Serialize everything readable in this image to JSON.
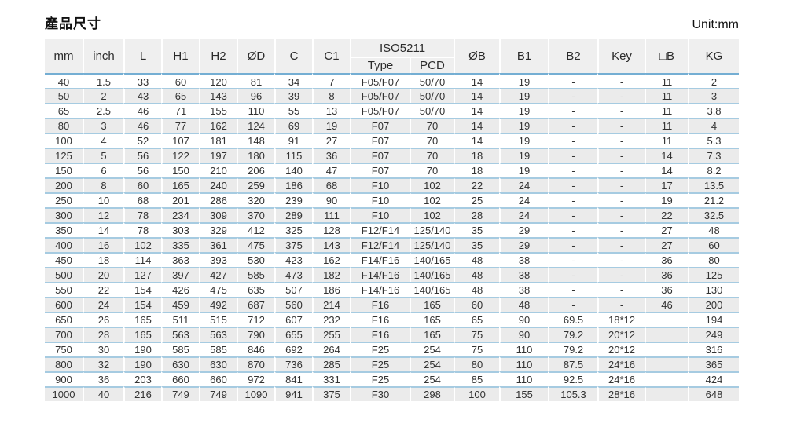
{
  "page": {
    "title": "產品尺寸",
    "unit_label": "Unit:mm"
  },
  "colors": {
    "header_bg": "#efefef",
    "row_alt_bg": "#ebebeb",
    "row_separator_blue": "#a6cbe1",
    "header_rule_blue": "#74aed3",
    "text": "#333333"
  },
  "table": {
    "header": {
      "left_columns": [
        "mm",
        "inch",
        "L",
        "H1",
        "H2",
        "ØD",
        "C",
        "C1"
      ],
      "group": {
        "label": "ISO5211",
        "sub_columns": [
          "Type",
          "PCD"
        ]
      },
      "right_columns": [
        "ØB",
        "B1",
        "B2",
        "Key",
        "□B",
        "KG"
      ]
    },
    "rows": [
      [
        "40",
        "1.5",
        "33",
        "60",
        "120",
        "81",
        "34",
        "7",
        "F05/F07",
        "50/70",
        "14",
        "19",
        "-",
        "-",
        "11",
        "2"
      ],
      [
        "50",
        "2",
        "43",
        "65",
        "143",
        "96",
        "39",
        "8",
        "F05/F07",
        "50/70",
        "14",
        "19",
        "-",
        "-",
        "11",
        "3"
      ],
      [
        "65",
        "2.5",
        "46",
        "71",
        "155",
        "110",
        "55",
        "13",
        "F05/F07",
        "50/70",
        "14",
        "19",
        "-",
        "-",
        "11",
        "3.8"
      ],
      [
        "80",
        "3",
        "46",
        "77",
        "162",
        "124",
        "69",
        "19",
        "F07",
        "70",
        "14",
        "19",
        "-",
        "-",
        "11",
        "4"
      ],
      [
        "100",
        "4",
        "52",
        "107",
        "181",
        "148",
        "91",
        "27",
        "F07",
        "70",
        "14",
        "19",
        "-",
        "-",
        "11",
        "5.3"
      ],
      [
        "125",
        "5",
        "56",
        "122",
        "197",
        "180",
        "115",
        "36",
        "F07",
        "70",
        "18",
        "19",
        "-",
        "-",
        "14",
        "7.3"
      ],
      [
        "150",
        "6",
        "56",
        "150",
        "210",
        "206",
        "140",
        "47",
        "F07",
        "70",
        "18",
        "19",
        "-",
        "-",
        "14",
        "8.2"
      ],
      [
        "200",
        "8",
        "60",
        "165",
        "240",
        "259",
        "186",
        "68",
        "F10",
        "102",
        "22",
        "24",
        "-",
        "-",
        "17",
        "13.5"
      ],
      [
        "250",
        "10",
        "68",
        "201",
        "286",
        "320",
        "239",
        "90",
        "F10",
        "102",
        "25",
        "24",
        "-",
        "-",
        "19",
        "21.2"
      ],
      [
        "300",
        "12",
        "78",
        "234",
        "309",
        "370",
        "289",
        "111",
        "F10",
        "102",
        "28",
        "24",
        "-",
        "-",
        "22",
        "32.5"
      ],
      [
        "350",
        "14",
        "78",
        "303",
        "329",
        "412",
        "325",
        "128",
        "F12/F14",
        "125/140",
        "35",
        "29",
        "-",
        "-",
        "27",
        "48"
      ],
      [
        "400",
        "16",
        "102",
        "335",
        "361",
        "475",
        "375",
        "143",
        "F12/F14",
        "125/140",
        "35",
        "29",
        "-",
        "-",
        "27",
        "60"
      ],
      [
        "450",
        "18",
        "114",
        "363",
        "393",
        "530",
        "423",
        "162",
        "F14/F16",
        "140/165",
        "48",
        "38",
        "-",
        "-",
        "36",
        "80"
      ],
      [
        "500",
        "20",
        "127",
        "397",
        "427",
        "585",
        "473",
        "182",
        "F14/F16",
        "140/165",
        "48",
        "38",
        "-",
        "-",
        "36",
        "125"
      ],
      [
        "550",
        "22",
        "154",
        "426",
        "475",
        "635",
        "507",
        "186",
        "F14/F16",
        "140/165",
        "48",
        "38",
        "-",
        "-",
        "36",
        "130"
      ],
      [
        "600",
        "24",
        "154",
        "459",
        "492",
        "687",
        "560",
        "214",
        "F16",
        "165",
        "60",
        "48",
        "-",
        "-",
        "46",
        "200"
      ],
      [
        "650",
        "26",
        "165",
        "511",
        "515",
        "712",
        "607",
        "232",
        "F16",
        "165",
        "65",
        "90",
        "69.5",
        "18*12",
        "",
        "194"
      ],
      [
        "700",
        "28",
        "165",
        "563",
        "563",
        "790",
        "655",
        "255",
        "F16",
        "165",
        "75",
        "90",
        "79.2",
        "20*12",
        "",
        "249"
      ],
      [
        "750",
        "30",
        "190",
        "585",
        "585",
        "846",
        "692",
        "264",
        "F25",
        "254",
        "75",
        "110",
        "79.2",
        "20*12",
        "",
        "316"
      ],
      [
        "800",
        "32",
        "190",
        "630",
        "630",
        "870",
        "736",
        "285",
        "F25",
        "254",
        "80",
        "110",
        "87.5",
        "24*16",
        "",
        "365"
      ],
      [
        "900",
        "36",
        "203",
        "660",
        "660",
        "972",
        "841",
        "331",
        "F25",
        "254",
        "85",
        "110",
        "92.5",
        "24*16",
        "",
        "424"
      ],
      [
        "1000",
        "40",
        "216",
        "749",
        "749",
        "1090",
        "941",
        "375",
        "F30",
        "298",
        "100",
        "155",
        "105.3",
        "28*16",
        "",
        "648"
      ]
    ]
  }
}
